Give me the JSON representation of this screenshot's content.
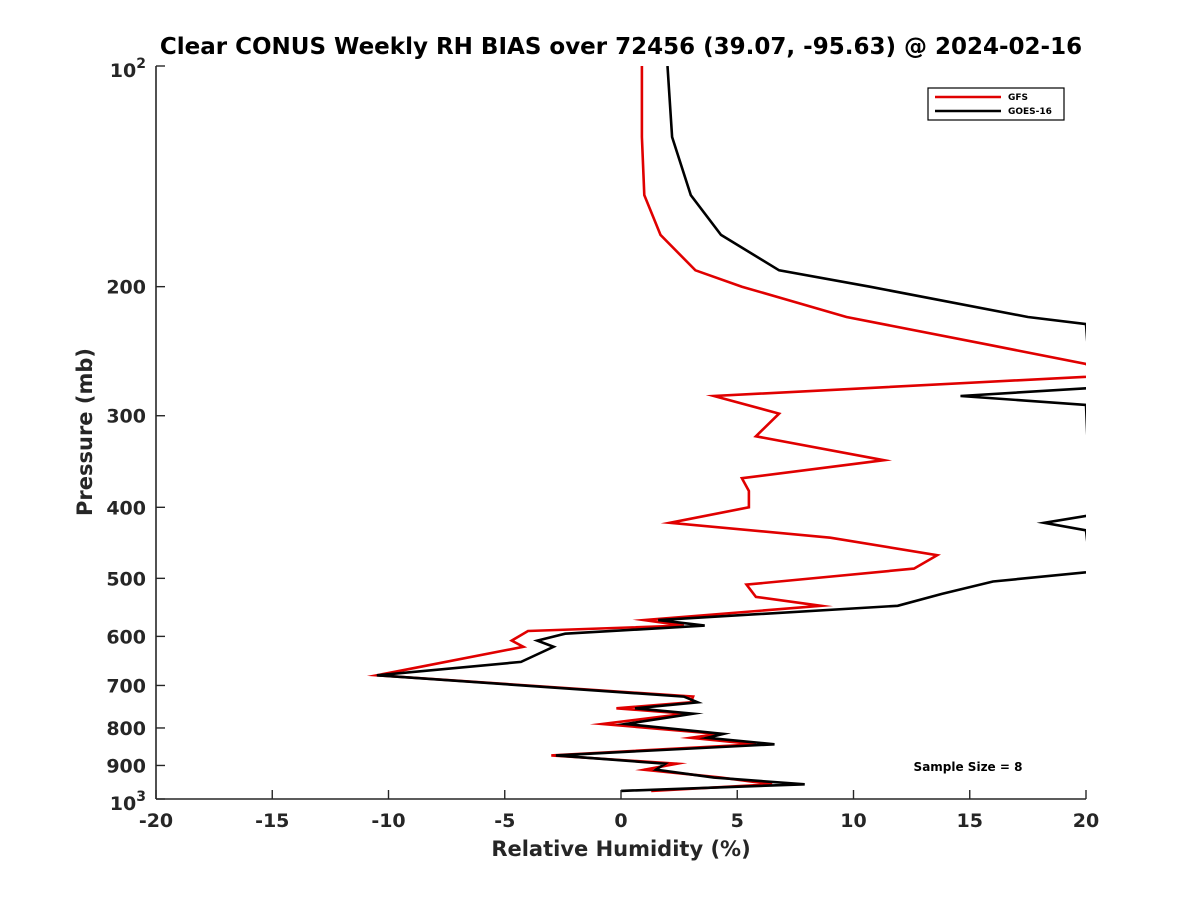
{
  "chart_data": {
    "type": "line",
    "title": "Clear CONUS Weekly RH BIAS over 72456 (39.07, -95.63) @ 2024-02-16",
    "xlabel": "Relative Humidity (%)",
    "ylabel": "Pressure (mb)",
    "xlim": [
      -20,
      20
    ],
    "ylim": [
      100,
      1000
    ],
    "yscale": "log",
    "yreversed": true,
    "x_ticks": [
      -20,
      -15,
      -10,
      -5,
      0,
      5,
      10,
      15,
      20
    ],
    "x_tick_labels": [
      "-20",
      "-15",
      "-10",
      "-5",
      "0",
      "5",
      "10",
      "15",
      "20"
    ],
    "y_ticks": [
      200,
      300,
      400,
      500,
      600,
      700,
      800,
      900
    ],
    "y_tick_labels": [
      "200",
      "300",
      "400",
      "500",
      "600",
      "700",
      "800",
      "900"
    ],
    "y_limit_labels": {
      "top": {
        "base": "10",
        "exp": "2"
      },
      "bottom": {
        "base": "10",
        "exp": "3"
      }
    },
    "legend_position": "top-right",
    "annotation": "Sample Size = 8",
    "series": [
      {
        "name": "GFS",
        "color": "#e00000",
        "points": [
          [
            0.9,
            100
          ],
          [
            0.9,
            125
          ],
          [
            1.0,
            150
          ],
          [
            1.7,
            170
          ],
          [
            3.2,
            190
          ],
          [
            5.2,
            200
          ],
          [
            9.7,
            220
          ],
          [
            15.8,
            240
          ],
          [
            20,
            255
          ],
          [
            20.5,
            265
          ],
          [
            4.0,
            282
          ],
          [
            6.8,
            298
          ],
          [
            5.8,
            320
          ],
          [
            11.3,
            345
          ],
          [
            5.2,
            365
          ],
          [
            5.5,
            380
          ],
          [
            5.5,
            400
          ],
          [
            2.1,
            420
          ],
          [
            9.0,
            440
          ],
          [
            13.6,
            465
          ],
          [
            12.6,
            485
          ],
          [
            5.4,
            510
          ],
          [
            5.8,
            530
          ],
          [
            8.6,
            545
          ],
          [
            1.0,
            570
          ],
          [
            2.7,
            580
          ],
          [
            -4.0,
            590
          ],
          [
            -4.7,
            608
          ],
          [
            -4.2,
            620
          ],
          [
            -10.5,
            678
          ],
          [
            3.1,
            725
          ],
          [
            3.0,
            738
          ],
          [
            -0.2,
            752
          ],
          [
            2.8,
            765
          ],
          [
            -0.8,
            790
          ],
          [
            4.2,
            815
          ],
          [
            3.0,
            825
          ],
          [
            5.8,
            842
          ],
          [
            -3.0,
            872
          ],
          [
            2.4,
            895
          ],
          [
            1.0,
            912
          ],
          [
            4.3,
            935
          ],
          [
            6.5,
            955
          ],
          [
            1.3,
            975
          ]
        ]
      },
      {
        "name": "GOES-16",
        "color": "#000000",
        "points": [
          [
            2.0,
            100
          ],
          [
            2.2,
            125
          ],
          [
            3.0,
            150
          ],
          [
            4.3,
            170
          ],
          [
            6.8,
            190
          ],
          [
            10.7,
            200
          ],
          [
            17.5,
            220
          ],
          [
            20,
            225
          ],
          [
            20.2,
            275
          ],
          [
            14.6,
            282
          ],
          [
            20,
            290
          ],
          [
            20.2,
            410
          ],
          [
            18.2,
            420
          ],
          [
            20,
            430
          ],
          [
            20.2,
            490
          ],
          [
            16.0,
            505
          ],
          [
            13.8,
            525
          ],
          [
            11.9,
            545
          ],
          [
            1.6,
            570
          ],
          [
            3.6,
            580
          ],
          [
            -2.4,
            595
          ],
          [
            -3.6,
            608
          ],
          [
            -2.9,
            620
          ],
          [
            -4.3,
            650
          ],
          [
            -10.5,
            678
          ],
          [
            2.7,
            725
          ],
          [
            3.3,
            738
          ],
          [
            0.6,
            752
          ],
          [
            3.1,
            765
          ],
          [
            0.2,
            790
          ],
          [
            4.4,
            815
          ],
          [
            3.7,
            825
          ],
          [
            6.6,
            842
          ],
          [
            -2.8,
            872
          ],
          [
            1.9,
            895
          ],
          [
            1.5,
            912
          ],
          [
            4.0,
            935
          ],
          [
            7.9,
            955
          ],
          [
            0.0,
            975
          ]
        ]
      }
    ]
  }
}
